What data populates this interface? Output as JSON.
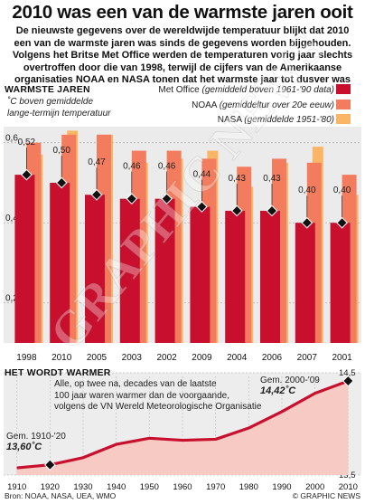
{
  "title": "2010 was een van de warmste jaren ooit",
  "intro_lines": [
    "De nieuwste gegevens over de wereldwijde temperatuur blijkt dat 2010",
    "een van de warmste jaren was sinds de gegevens worden bijgehouden.",
    "Volgens het Britse Met Office werden de temperaturen vorig jaar slechts",
    "overtroffen door die van 1998, terwijl de cijfers van de Amerikaanse",
    "organisaties NOAA en NASA tonen dat het warmste jaar tot dusver was"
  ],
  "chart_data": [
    {
      "type": "bar",
      "title": "WARMSTE JAREN",
      "ylabel_lines": [
        "˚C boven gemiddelde",
        "lange-termijn temperatuur"
      ],
      "ylim": [
        0.1,
        0.64
      ],
      "y_ticks": [
        0.2,
        0.4,
        0.6
      ],
      "y_tick_labels": [
        "0,2",
        "0,4",
        "0,6"
      ],
      "grid": true,
      "legend_position": "top-right",
      "categories": [
        "1998",
        "2010",
        "2005",
        "2003",
        "2002",
        "2009",
        "2004",
        "2006",
        "2007",
        "2001"
      ],
      "series": [
        {
          "name": "Met Office",
          "note": "(gemiddeld boven 1961-'90 data)",
          "color": "#c8102e",
          "values": [
            0.52,
            0.5,
            0.47,
            0.46,
            0.46,
            0.44,
            0.43,
            0.43,
            0.4,
            0.4
          ]
        },
        {
          "name": "NOAA",
          "note": "(gemiddeltur over 20e eeuw)",
          "color": "#f47c5e",
          "values": [
            0.6,
            0.62,
            0.62,
            0.58,
            0.58,
            0.56,
            0.54,
            0.56,
            0.55,
            0.52
          ]
        },
        {
          "name": "NASA",
          "note": "(gemiddelde 1951-'80)",
          "color": "#fbb567",
          "values": [
            0.57,
            0.63,
            0.62,
            0.55,
            0.56,
            0.58,
            0.49,
            0.55,
            0.59,
            0.47
          ]
        }
      ],
      "value_labels": [
        "0,52",
        "0,50",
        "0,47",
        "0,46",
        "0,46",
        "0,44",
        "0,43",
        "0,43",
        "0,40",
        "0,40"
      ]
    },
    {
      "type": "area",
      "title": "HET WORDT WARMER",
      "caption_lines": [
        "Alle, op twee na, decades van de laatste",
        "100 jaar waren warmer dan de voorgaande,",
        "volgens de VN Wereld Meteorologische Organisatie"
      ],
      "x": [
        1910,
        1920,
        1930,
        1940,
        1950,
        1960,
        1970,
        1980,
        1990,
        2000,
        2010
      ],
      "x_tick_labels": [
        "1910",
        "1920",
        "1930",
        "1940",
        "1950",
        "1960",
        "1970",
        "1980",
        "1990",
        "2000",
        "2010"
      ],
      "y": [
        13.57,
        13.6,
        13.67,
        13.8,
        13.86,
        13.84,
        13.85,
        13.96,
        14.12,
        14.3,
        14.42
      ],
      "ylim": [
        13.5,
        14.5
      ],
      "y_tick_labels": [
        "13,5",
        "14,5"
      ],
      "annotations": [
        {
          "label": "Gem. 1910-'20",
          "value": "13,60˚C",
          "x": 1920
        },
        {
          "label": "Gem. 2000-'09",
          "value": "14,42˚C",
          "x": 2010
        }
      ]
    }
  ],
  "source": "Bron: NOAA, NASA, UEA, WMO",
  "credit": "© GRAPHIC NEWS",
  "watermark": "GRAPHIC NEWS"
}
